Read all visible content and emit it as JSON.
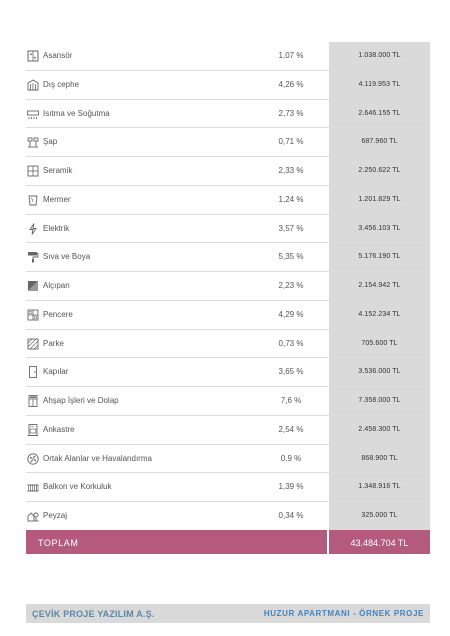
{
  "rows": [
    {
      "icon": "elevator-icon",
      "label": "Asansör",
      "pct": "1,07 %",
      "amount": "1.038.000 TL"
    },
    {
      "icon": "facade-icon",
      "label": "Dış cephe",
      "pct": "4,26 %",
      "amount": "4.119.953 TL"
    },
    {
      "icon": "hvac-icon",
      "label": "Isıtma ve Soğutma",
      "pct": "2,73 %",
      "amount": "2.646.155 TL"
    },
    {
      "icon": "screed-icon",
      "label": "Şap",
      "pct": "0,71 %",
      "amount": "687.960 TL"
    },
    {
      "icon": "tile-icon",
      "label": "Seramik",
      "pct": "2,33 %",
      "amount": "2.250.622 TL"
    },
    {
      "icon": "marble-icon",
      "label": "Mermer",
      "pct": "1,24 %",
      "amount": "1.201.829 TL"
    },
    {
      "icon": "electric-icon",
      "label": "Elektrik",
      "pct": "3,57 %",
      "amount": "3.456.103 TL"
    },
    {
      "icon": "paint-roller-icon",
      "label": "Sıva ve Boya",
      "pct": "5,35 %",
      "amount": "5.176.190 TL"
    },
    {
      "icon": "drywall-icon",
      "label": "Alçıpan",
      "pct": "2,23 %",
      "amount": "2.154.942 TL"
    },
    {
      "icon": "window-icon",
      "label": "Pencere",
      "pct": "4,29 %",
      "amount": "4.152.234 TL"
    },
    {
      "icon": "parquet-icon",
      "label": "Parke",
      "pct": "0,73 %",
      "amount": "705.600 TL"
    },
    {
      "icon": "door-icon",
      "label": "Kapılar",
      "pct": "3,65 %",
      "amount": "3.536.000 TL"
    },
    {
      "icon": "cabinet-icon",
      "label": "Ahşap İşleri ve Dolap",
      "pct": "7,6 %",
      "amount": "7.358.000 TL"
    },
    {
      "icon": "built-in-icon",
      "label": "Ankastre",
      "pct": "2,54 %",
      "amount": "2.458.300 TL"
    },
    {
      "icon": "ventilation-icon",
      "label": "Ortak Alanlar ve Havalandırma",
      "pct": "0.9 %",
      "amount": "868.900 TL"
    },
    {
      "icon": "balcony-railing-icon",
      "label": "Balkon ve Korkuluk",
      "pct": "1,39 %",
      "amount": "1.348.916 TL"
    },
    {
      "icon": "landscape-icon",
      "label": "Peyzaj",
      "pct": "0,34 %",
      "amount": "325.000 TL"
    }
  ],
  "total": {
    "label": "TOPLAM",
    "value": "43.484.704 TL"
  },
  "footer": {
    "company": "ÇEVİK PROJE YAZILIM A.Ş.",
    "project": "HUZUR APARTMANI - ÖRNEK PROJE"
  },
  "colors": {
    "accent": "#b35a7d",
    "amount_bg": "#dadada",
    "footer_bg": "#d9d9d9",
    "footer_left_text": "#5a88a8",
    "footer_right_text": "#3c86c4"
  }
}
